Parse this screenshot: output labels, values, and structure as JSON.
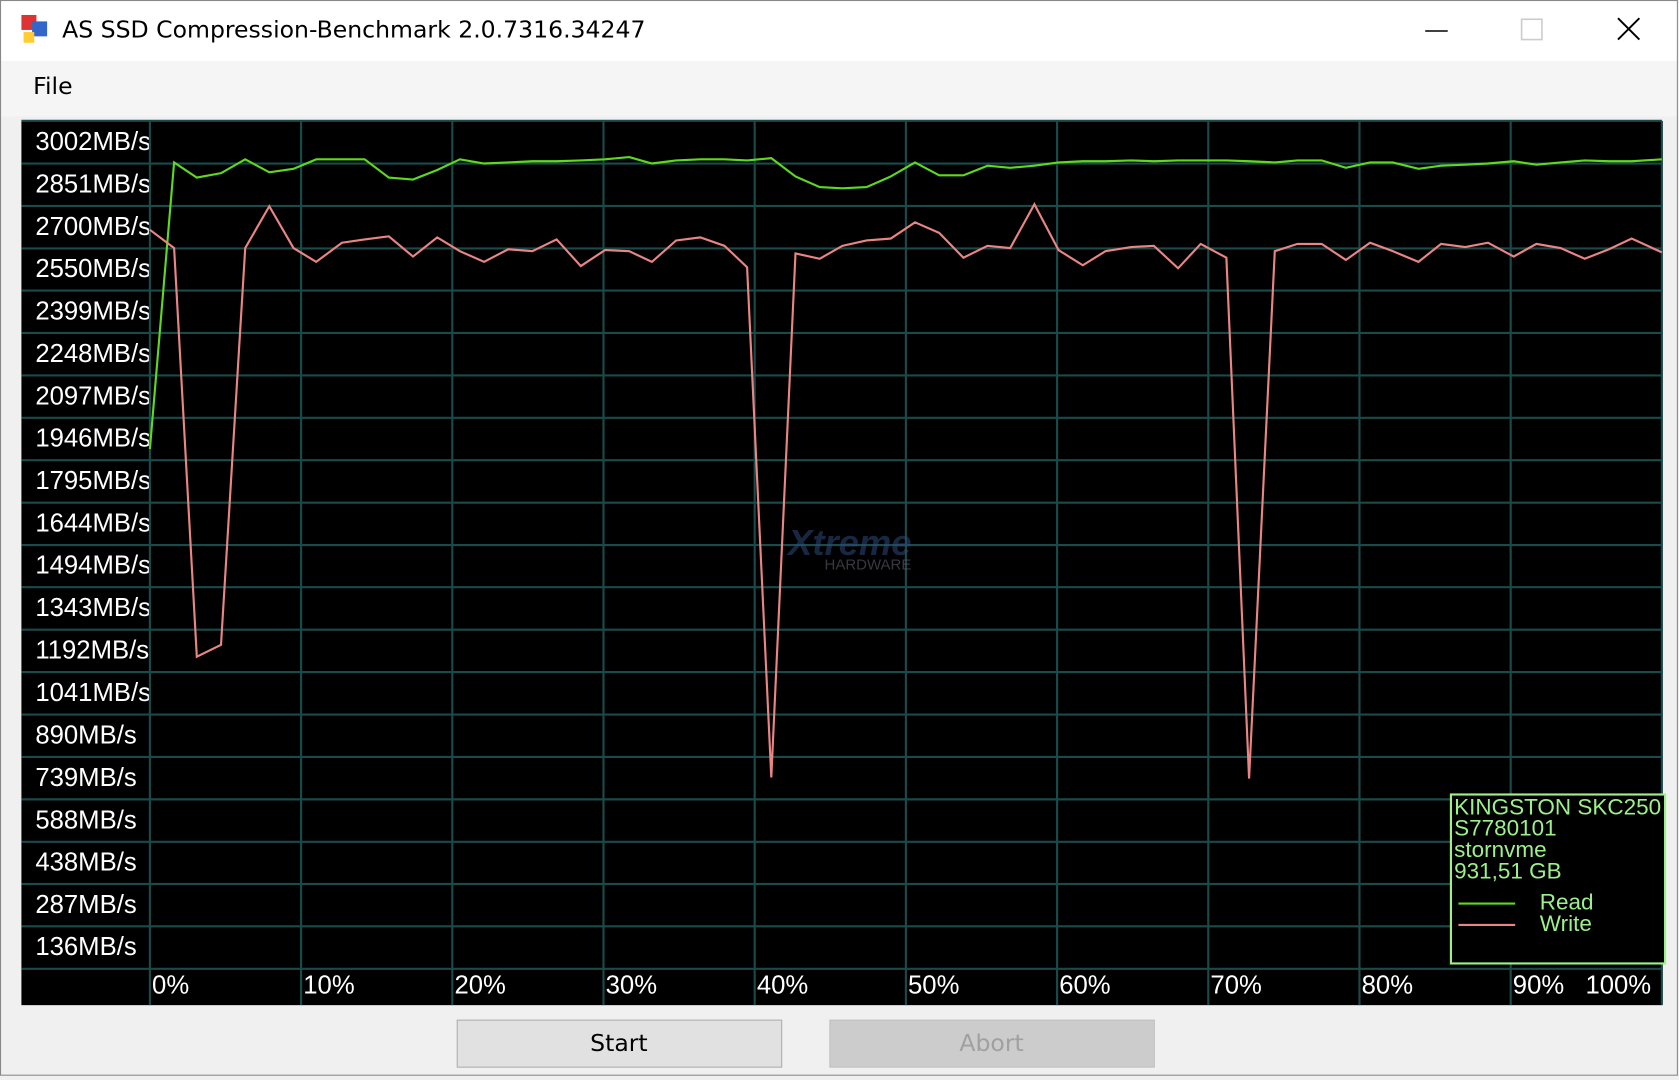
{
  "window": {
    "title": "AS SSD Compression-Benchmark 2.0.7316.34247"
  },
  "menu": [
    "File"
  ],
  "chart_data": {
    "type": "line",
    "x": [
      0,
      1.6,
      3.1,
      4.7,
      6.3,
      7.9,
      9.5,
      11.0,
      12.7,
      14.2,
      15.8,
      17.4,
      19.0,
      20.5,
      22.1,
      23.7,
      25.3,
      26.9,
      28.5,
      30.1,
      31.7,
      33.2,
      34.8,
      36.4,
      38.0,
      39.5,
      41.1,
      42.7,
      44.3,
      45.8,
      47.4,
      49.0,
      50.6,
      52.2,
      53.8,
      55.4,
      56.9,
      58.5,
      60.1,
      61.7,
      63.2,
      64.9,
      66.4,
      68.0,
      69.5,
      71.2,
      72.7,
      74.4,
      75.9,
      77.5,
      79.1,
      80.7,
      82.2,
      83.9,
      85.4,
      87.0,
      88.5,
      90.2,
      91.7,
      93.3,
      94.9,
      96.5,
      98.0,
      100
    ],
    "series": [
      {
        "name": "Read",
        "color": "#5fd81e",
        "values": [
          1986,
          3006,
          2952,
          2968,
          3017,
          2971,
          2983,
          3017,
          3017,
          3017,
          2952,
          2945,
          2979,
          3017,
          3002,
          3006,
          3010,
          3010,
          3013,
          3017,
          3025,
          3002,
          3013,
          3017,
          3017,
          3013,
          3021,
          2956,
          2918,
          2914,
          2918,
          2956,
          3006,
          2960,
          2960,
          2994,
          2987,
          2994,
          3006,
          3010,
          3010,
          3013,
          3010,
          3013,
          3013,
          3013,
          3010,
          3006,
          3013,
          3013,
          2987,
          3006,
          3006,
          2983,
          2994,
          2998,
          3002,
          3010,
          2998,
          3006,
          3013,
          3010,
          3010,
          3017
        ]
      },
      {
        "name": "Write",
        "color": "#e98585",
        "values": [
          2766,
          2701,
          1247,
          1289,
          2701,
          2850,
          2701,
          2652,
          2720,
          2732,
          2743,
          2671,
          2739,
          2690,
          2652,
          2697,
          2690,
          2732,
          2637,
          2694,
          2690,
          2652,
          2728,
          2739,
          2709,
          2633,
          817,
          2682,
          2663,
          2709,
          2728,
          2735,
          2793,
          2755,
          2667,
          2709,
          2701,
          2857,
          2694,
          2640,
          2690,
          2705,
          2709,
          2629,
          2716,
          2667,
          813,
          2690,
          2716,
          2716,
          2659,
          2720,
          2690,
          2652,
          2716,
          2705,
          2720,
          2671,
          2716,
          2701,
          2663,
          2697,
          2735,
          2686
        ]
      }
    ],
    "xlim": [
      0,
      100
    ],
    "xticks": [
      {
        "value": 0,
        "label": "0%"
      },
      {
        "value": 10,
        "label": "10%"
      },
      {
        "value": 20,
        "label": "20%"
      },
      {
        "value": 30,
        "label": "30%"
      },
      {
        "value": 40,
        "label": "40%"
      },
      {
        "value": 50,
        "label": "50%"
      },
      {
        "value": 60,
        "label": "60%"
      },
      {
        "value": 70,
        "label": "70%"
      },
      {
        "value": 80,
        "label": "80%"
      },
      {
        "value": 90,
        "label": "90%"
      },
      {
        "value": 100,
        "label": "100%"
      }
    ],
    "ylim": [
      136,
      3154
    ],
    "yticks": [
      {
        "value": 3002,
        "label": "3002MB/s"
      },
      {
        "value": 2851,
        "label": "2851MB/s"
      },
      {
        "value": 2700,
        "label": "2700MB/s"
      },
      {
        "value": 2550,
        "label": "2550MB/s"
      },
      {
        "value": 2399,
        "label": "2399MB/s"
      },
      {
        "value": 2248,
        "label": "2248MB/s"
      },
      {
        "value": 2097,
        "label": "2097MB/s"
      },
      {
        "value": 1946,
        "label": "1946MB/s"
      },
      {
        "value": 1795,
        "label": "1795MB/s"
      },
      {
        "value": 1644,
        "label": "1644MB/s"
      },
      {
        "value": 1494,
        "label": "1494MB/s"
      },
      {
        "value": 1343,
        "label": "1343MB/s"
      },
      {
        "value": 1192,
        "label": "1192MB/s"
      },
      {
        "value": 1041,
        "label": "1041MB/s"
      },
      {
        "value": 890,
        "label": "890MB/s"
      },
      {
        "value": 739,
        "label": "739MB/s"
      },
      {
        "value": 588,
        "label": "588MB/s"
      },
      {
        "value": 438,
        "label": "438MB/s"
      },
      {
        "value": 287,
        "label": "287MB/s"
      },
      {
        "value": 136,
        "label": "136MB/s"
      }
    ],
    "grid": true,
    "legend": "bottom-right",
    "device_info": [
      "KINGSTON SKC250",
      "S7780101",
      "stornvme",
      "931,51 GB"
    ]
  },
  "watermark": [
    "Xtreme",
    "HARDWARE"
  ],
  "buttons": [
    "Start",
    "Abort"
  ]
}
